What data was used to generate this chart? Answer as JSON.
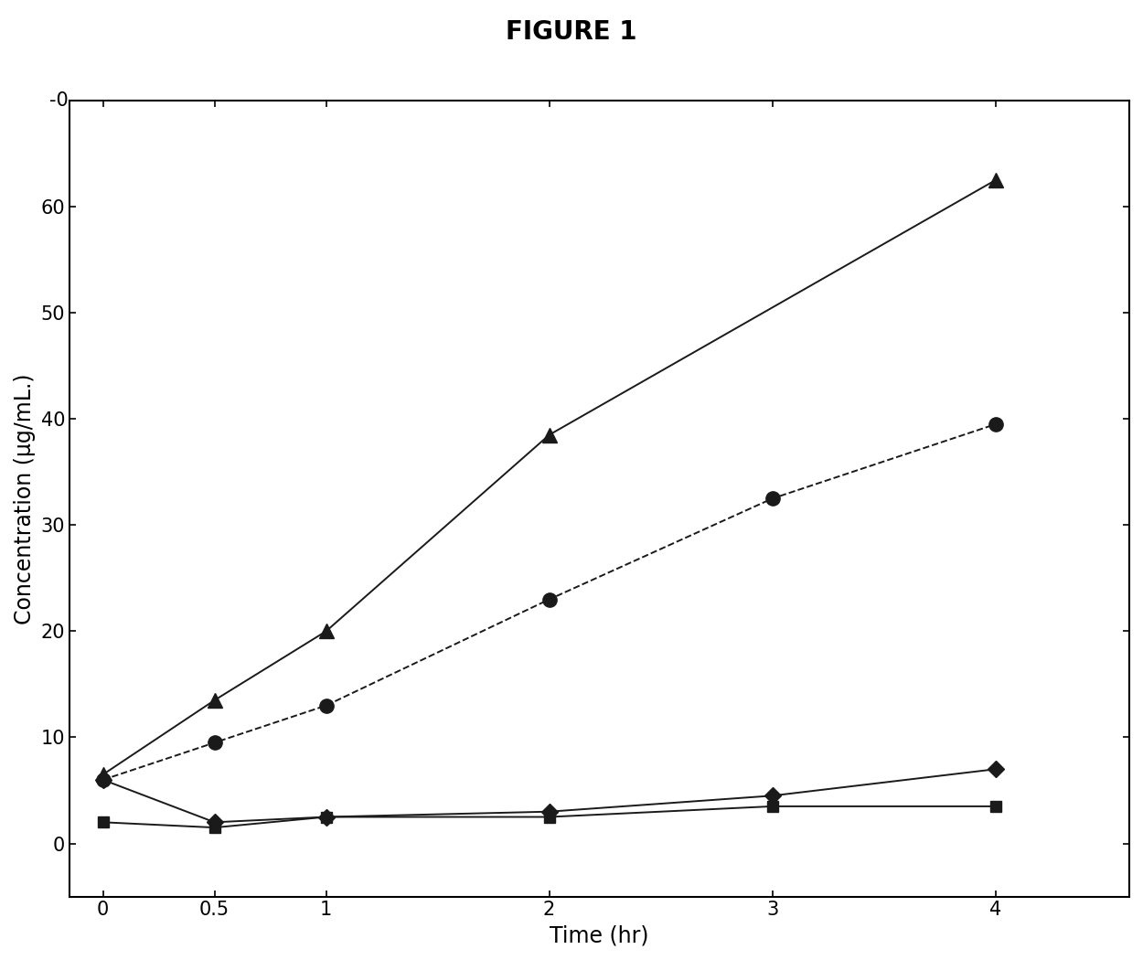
{
  "title": "FIGURE 1",
  "xlabel": "Time (hr)",
  "ylabel": "Concentration (μg/mL.)",
  "xlim": [
    -0.15,
    4.6
  ],
  "ylim": [
    -5,
    70
  ],
  "yticks": [
    0,
    10,
    20,
    30,
    40,
    50,
    60
  ],
  "ytick_labels": [
    "0",
    "10",
    "20",
    "30",
    "40",
    "50",
    "60"
  ],
  "xticks": [
    0,
    0.5,
    1,
    2,
    3,
    4
  ],
  "xtick_labels": [
    "0",
    "0.5",
    "1",
    "2",
    "3",
    "4"
  ],
  "series": [
    {
      "x": [
        0,
        0.5,
        1,
        2,
        4
      ],
      "y": [
        6.5,
        13.5,
        20.0,
        38.5,
        62.5
      ],
      "marker": "^",
      "color": "#1a1a1a",
      "markersize": 11,
      "linewidth": 1.4,
      "linestyle": "-",
      "zorder": 4
    },
    {
      "x": [
        0,
        0.5,
        1,
        2,
        3,
        4
      ],
      "y": [
        6.0,
        9.5,
        13.0,
        23.0,
        32.5,
        39.5
      ],
      "marker": "o",
      "color": "#1a1a1a",
      "markersize": 11,
      "linewidth": 1.4,
      "linestyle": "--",
      "zorder": 3
    },
    {
      "x": [
        0,
        0.5,
        1,
        2,
        3,
        4
      ],
      "y": [
        6.0,
        2.0,
        2.5,
        3.0,
        4.5,
        7.0
      ],
      "marker": "D",
      "color": "#1a1a1a",
      "markersize": 9,
      "linewidth": 1.4,
      "linestyle": "-",
      "zorder": 2
    },
    {
      "x": [
        0,
        0.5,
        1,
        2,
        3,
        4
      ],
      "y": [
        2.0,
        1.5,
        2.5,
        2.5,
        3.5,
        3.5
      ],
      "marker": "s",
      "color": "#1a1a1a",
      "markersize": 9,
      "linewidth": 1.4,
      "linestyle": "-",
      "zorder": 1
    }
  ],
  "background_color": "#ffffff",
  "title_fontsize": 20,
  "axis_label_fontsize": 17,
  "tick_fontsize": 15,
  "top_label": "-0"
}
